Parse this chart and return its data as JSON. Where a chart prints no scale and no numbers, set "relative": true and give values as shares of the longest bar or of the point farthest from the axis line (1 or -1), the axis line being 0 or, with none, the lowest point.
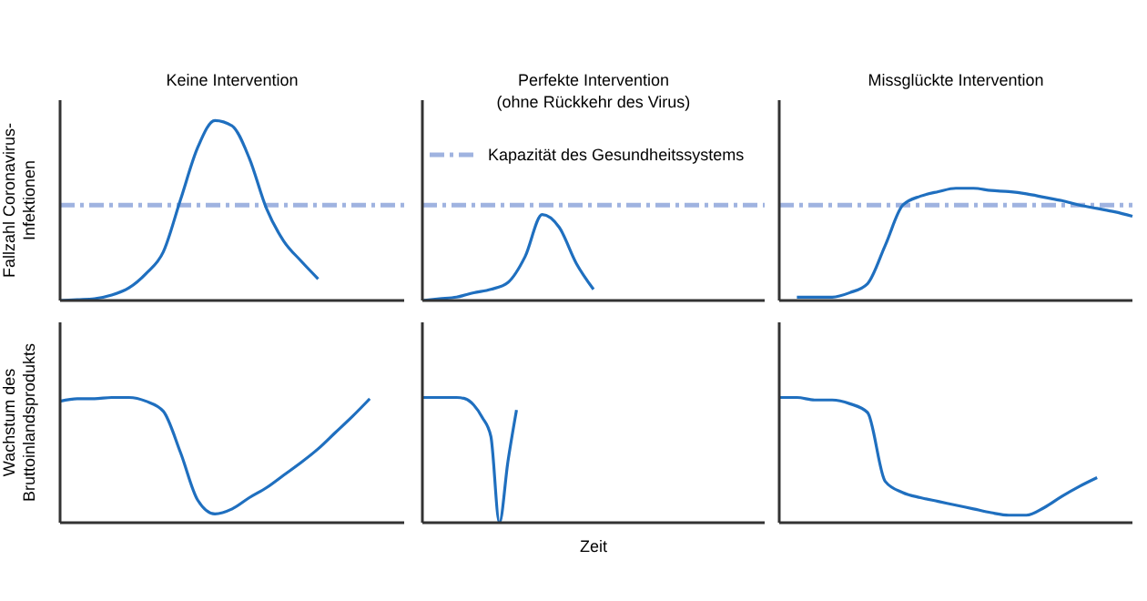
{
  "chart_data": [
    {
      "type": "line",
      "title": "Keine Intervention",
      "ylabel": "Fallzahl Coronavirus-\nInfektionen",
      "relative": true,
      "categories": [
        null,
        null,
        null,
        null,
        null,
        null,
        null,
        null,
        null,
        null,
        null,
        null,
        null,
        null,
        null,
        null,
        null,
        null,
        null,
        null,
        null
      ],
      "series": [
        {
          "color": "#1f6fbf",
          "values": [
            0,
            0.005,
            0.01,
            0.03,
            0.07,
            0.15,
            0.27,
            0.56,
            0.85,
            1,
            0.97,
            0.79,
            0.51,
            0.33,
            0.22,
            0.12,
            null,
            null,
            null,
            null,
            null
          ]
        }
      ],
      "ref_lines": [
        {
          "axis": "y",
          "value": 0.53,
          "color": "#9fb3e0",
          "line_style": "dashed"
        }
      ]
    },
    {
      "type": "line",
      "title": "Perfekte Intervention\n(ohne Rückkehr des Virus)",
      "relative": true,
      "categories": [
        null,
        null,
        null,
        null,
        null,
        null,
        null,
        null,
        null,
        null,
        null,
        null,
        null,
        null,
        null,
        null,
        null,
        null,
        null,
        null,
        null
      ],
      "series": [
        {
          "color": "#1f6fbf",
          "values": [
            0,
            0.02,
            0.04,
            0.09,
            0.13,
            0.21,
            0.51,
            1,
            0.85,
            0.43,
            0.13,
            null,
            null,
            null,
            null,
            null,
            null,
            null,
            null,
            null,
            null
          ]
        }
      ],
      "ref_lines": [
        {
          "axis": "y",
          "value": 1.11,
          "label": "Kapazität des Gesundheitssystems",
          "color": "#9fb3e0",
          "line_style": "dashed"
        }
      ]
    },
    {
      "type": "line",
      "title": "Missglückte Intervention",
      "relative": true,
      "categories": [
        null,
        null,
        null,
        null,
        null,
        null,
        null,
        null,
        null,
        null,
        null,
        null,
        null,
        null,
        null,
        null,
        null,
        null,
        null,
        null,
        null
      ],
      "series": [
        {
          "color": "#1f6fbf",
          "values": [
            null,
            0.03,
            0.03,
            0.03,
            0.07,
            0.15,
            0.49,
            0.85,
            0.93,
            0.97,
            1,
            1,
            0.98,
            0.97,
            0.95,
            0.92,
            0.89,
            0.85,
            0.82,
            0.79,
            0.75
          ]
        }
      ],
      "ref_lines": [
        {
          "axis": "y",
          "value": 0.85,
          "color": "#9fb3e0",
          "line_style": "dashed"
        }
      ]
    },
    {
      "type": "line",
      "ylabel": "Wachstum des\nBruttoinlandsprodukts",
      "relative": true,
      "categories": [
        null,
        null,
        null,
        null,
        null,
        null,
        null,
        null,
        null,
        null,
        null,
        null,
        null,
        null,
        null,
        null,
        null,
        null,
        null,
        null,
        null
      ],
      "series": [
        {
          "color": "#1f6fbf",
          "values": [
            0.97,
            0.99,
            0.99,
            1,
            1,
            0.97,
            0.89,
            0.56,
            0.18,
            0.07,
            0.11,
            0.2,
            0.28,
            0.38,
            0.48,
            0.59,
            0.72,
            0.85,
            0.99,
            null,
            null
          ]
        }
      ]
    },
    {
      "type": "line",
      "xlabel": "Zeit",
      "relative": true,
      "categories": [
        null,
        null,
        null,
        null,
        null,
        null,
        null,
        null,
        null,
        null,
        null,
        null,
        null,
        null,
        null,
        null,
        null,
        null,
        null,
        null,
        null,
        null,
        null,
        null,
        null,
        null,
        null,
        null,
        null,
        null,
        null,
        null,
        null,
        null,
        null,
        null,
        null,
        null,
        null,
        null,
        null
      ],
      "series": [
        {
          "color": "#1f6fbf",
          "values": [
            1,
            1,
            1,
            1,
            1,
            0.99,
            0.94,
            0.84,
            0.69,
            0,
            0.49,
            0.9,
            null,
            null,
            null,
            null,
            null,
            null,
            null,
            null,
            null,
            null,
            null,
            null,
            null,
            null,
            null,
            null,
            null,
            null,
            null,
            null,
            null,
            null,
            null,
            null,
            null,
            null,
            null,
            null,
            null
          ]
        }
      ]
    },
    {
      "type": "line",
      "relative": true,
      "categories": [
        null,
        null,
        null,
        null,
        null,
        null,
        null,
        null,
        null,
        null,
        null,
        null,
        null,
        null,
        null,
        null,
        null,
        null,
        null,
        null,
        null
      ],
      "series": [
        {
          "color": "#1f6fbf",
          "values": [
            1,
            1,
            0.98,
            0.98,
            0.95,
            0.88,
            0.33,
            0.24,
            0.2,
            0.17,
            0.14,
            0.11,
            0.08,
            0.06,
            0.06,
            0.12,
            0.21,
            0.29,
            0.36,
            null,
            null
          ]
        }
      ]
    }
  ]
}
